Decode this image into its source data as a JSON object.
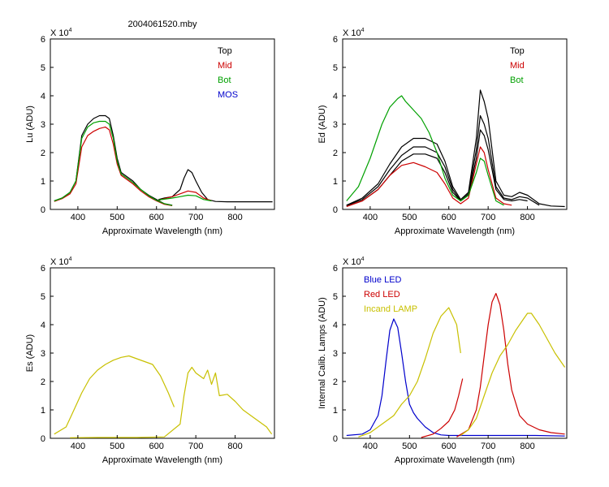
{
  "figure_title": "2004061520.mby",
  "chart_data": [
    {
      "id": "lu",
      "type": "line",
      "title": "2004061520.mby",
      "xlabel": "Approximate Wavelength (nm)",
      "ylabel": "Lu (ADU)",
      "multiplier_label": "X 10",
      "multiplier_exp": "4",
      "xlim": [
        330,
        900
      ],
      "ylim": [
        0,
        6
      ],
      "xticks": [
        400,
        500,
        600,
        700,
        800
      ],
      "yticks": [
        0,
        1,
        2,
        3,
        4,
        5,
        6
      ],
      "legend": [
        {
          "label": "Top",
          "color": "#000000"
        },
        {
          "label": "Mid",
          "color": "#cc0000"
        },
        {
          "label": "Bot",
          "color": "#00a000"
        },
        {
          "label": "MOS",
          "color": "#0000cc"
        }
      ],
      "series": [
        {
          "name": "Top",
          "color": "#000000",
          "segments": [
            {
              "x": [
                340,
                360,
                380,
                395,
                410,
                425,
                440,
                455,
                470,
                480,
                490,
                500,
                510,
                520,
                540,
                560,
                580,
                600,
                620,
                640
              ],
              "y": [
                0.3,
                0.4,
                0.6,
                1.0,
                2.6,
                3.0,
                3.2,
                3.3,
                3.3,
                3.2,
                2.6,
                1.8,
                1.3,
                1.2,
                1.0,
                0.7,
                0.5,
                0.35,
                0.2,
                0.15
              ]
            },
            {
              "x": [
                605,
                620,
                640,
                660,
                670,
                680,
                690,
                700,
                715,
                730,
                750,
                780,
                810,
                840,
                870,
                895
              ],
              "y": [
                0.35,
                0.4,
                0.45,
                0.7,
                1.1,
                1.4,
                1.3,
                1.0,
                0.6,
                0.35,
                0.28,
                0.27,
                0.27,
                0.27,
                0.27,
                0.27
              ]
            }
          ]
        },
        {
          "name": "Mid",
          "color": "#cc0000",
          "segments": [
            {
              "x": [
                340,
                360,
                380,
                395,
                410,
                425,
                440,
                455,
                470,
                480,
                490,
                500,
                510,
                520,
                540,
                560,
                580,
                600,
                620,
                640
              ],
              "y": [
                0.28,
                0.38,
                0.55,
                0.9,
                2.2,
                2.6,
                2.75,
                2.85,
                2.9,
                2.8,
                2.3,
                1.6,
                1.2,
                1.1,
                0.9,
                0.65,
                0.45,
                0.3,
                0.18,
                0.13
              ]
            },
            {
              "x": [
                605,
                620,
                640,
                660,
                680,
                700,
                720,
                740
              ],
              "y": [
                0.32,
                0.38,
                0.45,
                0.55,
                0.65,
                0.6,
                0.4,
                0.3
              ]
            }
          ]
        },
        {
          "name": "Bot",
          "color": "#00a000",
          "segments": [
            {
              "x": [
                340,
                360,
                380,
                395,
                410,
                425,
                440,
                455,
                470,
                480,
                490,
                500,
                510,
                520,
                540,
                560,
                580,
                600,
                620,
                640
              ],
              "y": [
                0.3,
                0.4,
                0.6,
                1.0,
                2.5,
                2.9,
                3.05,
                3.1,
                3.1,
                3.0,
                2.5,
                1.7,
                1.25,
                1.15,
                0.95,
                0.7,
                0.48,
                0.32,
                0.2,
                0.14
              ]
            },
            {
              "x": [
                605,
                620,
                640,
                660,
                680,
                700,
                720,
                740
              ],
              "y": [
                0.33,
                0.36,
                0.4,
                0.45,
                0.5,
                0.48,
                0.35,
                0.3
              ]
            }
          ]
        },
        {
          "name": "MOS",
          "color": "#0000cc",
          "segments": []
        }
      ]
    },
    {
      "id": "ed",
      "type": "line",
      "title": "",
      "xlabel": "Approximate Wavelength (nm)",
      "ylabel": "Ed  (ADU)",
      "multiplier_label": "X 10",
      "multiplier_exp": "4",
      "xlim": [
        330,
        900
      ],
      "ylim": [
        0,
        6
      ],
      "xticks": [
        400,
        500,
        600,
        700,
        800
      ],
      "yticks": [
        0,
        1,
        2,
        3,
        4,
        5,
        6
      ],
      "legend": [
        {
          "label": "Top",
          "color": "#000000"
        },
        {
          "label": "Mid",
          "color": "#cc0000"
        },
        {
          "label": "Bot",
          "color": "#00a000"
        }
      ],
      "series": [
        {
          "name": "Top",
          "color": "#000000",
          "segments": [
            {
              "x": [
                340,
                380,
                420,
                450,
                480,
                510,
                540,
                570,
                590,
                610,
                630,
                650,
                670,
                680,
                690,
                700,
                720,
                740,
                760,
                780,
                800,
                830,
                860,
                895
              ],
              "y": [
                0.15,
                0.4,
                0.9,
                1.6,
                2.2,
                2.5,
                2.5,
                2.3,
                1.7,
                0.8,
                0.35,
                0.6,
                2.5,
                4.2,
                3.8,
                3.2,
                1.0,
                0.5,
                0.45,
                0.6,
                0.5,
                0.2,
                0.12,
                0.1
              ]
            },
            {
              "x": [
                340,
                380,
                420,
                450,
                480,
                510,
                540,
                570,
                590,
                610,
                630,
                650,
                670,
                680,
                690,
                700,
                720,
                740,
                760,
                780,
                800,
                830
              ],
              "y": [
                0.15,
                0.35,
                0.8,
                1.4,
                1.9,
                2.2,
                2.2,
                2.0,
                1.5,
                0.7,
                0.3,
                0.55,
                2.1,
                3.3,
                3.0,
                2.5,
                0.8,
                0.4,
                0.35,
                0.45,
                0.4,
                0.15
              ]
            },
            {
              "x": [
                340,
                380,
                420,
                450,
                480,
                510,
                540,
                570,
                590,
                610,
                630,
                650,
                670,
                680,
                690,
                700,
                720,
                740,
                760,
                780,
                800
              ],
              "y": [
                0.12,
                0.3,
                0.7,
                1.2,
                1.7,
                1.95,
                1.95,
                1.8,
                1.3,
                0.6,
                0.3,
                0.5,
                1.8,
                2.8,
                2.6,
                2.1,
                0.7,
                0.35,
                0.3,
                0.35,
                0.3
              ]
            }
          ]
        },
        {
          "name": "Mid",
          "color": "#cc0000",
          "segments": [
            {
              "x": [
                340,
                380,
                420,
                450,
                480,
                510,
                540,
                570,
                590,
                610,
                630,
                650,
                670,
                680,
                690,
                700,
                720,
                740,
                760
              ],
              "y": [
                0.1,
                0.3,
                0.7,
                1.2,
                1.55,
                1.65,
                1.5,
                1.3,
                0.9,
                0.4,
                0.2,
                0.4,
                1.6,
                2.2,
                2.0,
                1.4,
                0.4,
                0.2,
                0.15
              ]
            }
          ]
        },
        {
          "name": "Bot",
          "color": "#00a000",
          "segments": [
            {
              "x": [
                340,
                370,
                400,
                430,
                450,
                470,
                480,
                490,
                510,
                530,
                550,
                570,
                590,
                610,
                630,
                650,
                670,
                680,
                690,
                700,
                720,
                740
              ],
              "y": [
                0.3,
                0.8,
                1.8,
                3.0,
                3.6,
                3.9,
                4.0,
                3.8,
                3.5,
                3.2,
                2.7,
                2.0,
                1.1,
                0.5,
                0.3,
                0.5,
                1.3,
                1.8,
                1.7,
                1.2,
                0.3,
                0.15
              ]
            }
          ]
        }
      ]
    },
    {
      "id": "es",
      "type": "line",
      "title": "",
      "xlabel": "Approximate Wavelength (nm)",
      "ylabel": "Es  (ADU)",
      "multiplier_label": "X 10",
      "multiplier_exp": "4",
      "xlim": [
        330,
        900
      ],
      "ylim": [
        0,
        6
      ],
      "xticks": [
        400,
        500,
        600,
        700,
        800
      ],
      "yticks": [
        0,
        1,
        2,
        3,
        4,
        5,
        6
      ],
      "legend": [],
      "series": [
        {
          "name": "Es",
          "color": "#c8c000",
          "segments": [
            {
              "x": [
                340,
                370,
                390,
                410,
                430,
                450,
                470,
                490,
                510,
                530,
                550,
                570,
                590,
                610,
                630,
                645
              ],
              "y": [
                0.15,
                0.4,
                1.0,
                1.6,
                2.1,
                2.4,
                2.6,
                2.75,
                2.85,
                2.9,
                2.8,
                2.7,
                2.6,
                2.2,
                1.6,
                1.1
              ]
            },
            {
              "x": [
                380,
                450,
                550,
                620,
                660,
                670,
                680,
                690,
                700,
                710,
                720,
                730,
                740,
                750,
                760,
                780,
                800,
                820,
                840,
                860,
                880,
                893
              ],
              "y": [
                0.02,
                0.03,
                0.03,
                0.05,
                0.5,
                1.5,
                2.3,
                2.5,
                2.3,
                2.2,
                2.1,
                2.4,
                1.9,
                2.3,
                1.5,
                1.55,
                1.3,
                1.0,
                0.8,
                0.6,
                0.4,
                0.15
              ]
            }
          ]
        }
      ]
    },
    {
      "id": "lamps",
      "type": "line",
      "title": "",
      "xlabel": "Approximate Wavelength (nm)",
      "ylabel": "Internal Calib. Lamps (ADU)",
      "multiplier_label": "X 10",
      "multiplier_exp": "4",
      "xlim": [
        330,
        900
      ],
      "ylim": [
        0,
        6
      ],
      "xticks": [
        400,
        500,
        600,
        700,
        800
      ],
      "yticks": [
        0,
        1,
        2,
        3,
        4,
        5,
        6
      ],
      "legend": [
        {
          "label": "Blue LED",
          "color": "#0000cc"
        },
        {
          "label": "Red LED",
          "color": "#cc0000"
        },
        {
          "label": "Incand LAMP",
          "color": "#c8c000"
        }
      ],
      "series": [
        {
          "name": "Blue LED",
          "color": "#0000cc",
          "segments": [
            {
              "x": [
                340,
                380,
                400,
                420,
                430,
                440,
                450,
                460,
                470,
                480,
                490,
                500,
                510,
                520,
                540,
                560,
                580,
                600,
                640,
                700,
                760,
                820,
                895
              ],
              "y": [
                0.1,
                0.15,
                0.3,
                0.8,
                1.5,
                2.7,
                3.8,
                4.2,
                3.9,
                3.0,
                2.0,
                1.2,
                0.9,
                0.7,
                0.4,
                0.2,
                0.12,
                0.1,
                0.1,
                0.1,
                0.1,
                0.1,
                0.08
              ]
            }
          ]
        },
        {
          "name": "Red LED",
          "color": "#cc0000",
          "segments": [
            {
              "x": [
                530,
                560,
                580,
                600,
                615,
                625,
                635
              ],
              "y": [
                0.03,
                0.15,
                0.35,
                0.6,
                1.0,
                1.5,
                2.1
              ]
            },
            {
              "x": [
                620,
                650,
                670,
                680,
                690,
                700,
                710,
                720,
                730,
                740,
                750,
                760,
                780,
                800,
                830,
                860,
                895
              ],
              "y": [
                0.05,
                0.3,
                1.0,
                1.8,
                2.9,
                4.0,
                4.8,
                5.1,
                4.7,
                3.8,
                2.6,
                1.7,
                0.8,
                0.5,
                0.3,
                0.2,
                0.15
              ]
            }
          ]
        },
        {
          "name": "Incand LAMP",
          "color": "#c8c000",
          "segments": [
            {
              "x": [
                370,
                400,
                420,
                440,
                460,
                480,
                500,
                520,
                540,
                560,
                580,
                600,
                620,
                630
              ],
              "y": [
                0.05,
                0.2,
                0.4,
                0.6,
                0.8,
                1.2,
                1.5,
                2.0,
                2.8,
                3.7,
                4.3,
                4.6,
                4.0,
                3.0
              ]
            },
            {
              "x": [
                630,
                650,
                670,
                690,
                710,
                730,
                750,
                770,
                790,
                800,
                810,
                830,
                850,
                870,
                895
              ],
              "y": [
                0.1,
                0.3,
                0.7,
                1.5,
                2.3,
                2.9,
                3.3,
                3.8,
                4.2,
                4.4,
                4.4,
                4.0,
                3.5,
                3.0,
                2.5
              ]
            }
          ]
        }
      ]
    }
  ]
}
